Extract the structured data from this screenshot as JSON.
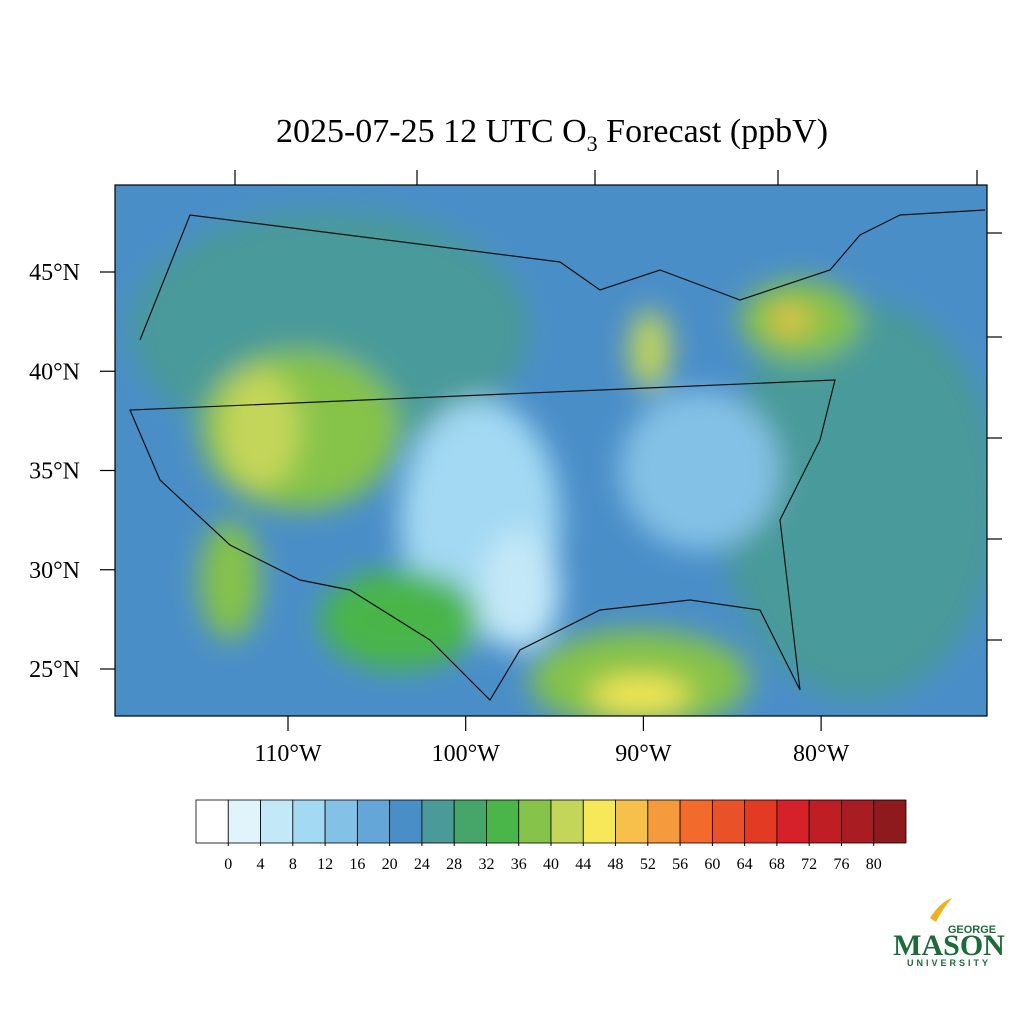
{
  "map": {
    "title_parts": [
      "2025-07-25 12 UTC O",
      "3",
      " Forecast (ppbV)"
    ],
    "lat_ticks": [
      {
        "value": 45,
        "label": "45°N"
      },
      {
        "value": 40,
        "label": "40°N"
      },
      {
        "value": 35,
        "label": "35°N"
      },
      {
        "value": 30,
        "label": "30°N"
      },
      {
        "value": 25,
        "label": "25°N"
      }
    ],
    "lon_ticks": [
      {
        "value": -110,
        "label": "110°W"
      },
      {
        "value": -100,
        "label": "100°W"
      },
      {
        "value": -90,
        "label": "90°W"
      },
      {
        "value": -80,
        "label": "80°W"
      }
    ],
    "colorbar": {
      "ticks": [
        0,
        4,
        8,
        12,
        16,
        20,
        24,
        28,
        32,
        36,
        40,
        44,
        48,
        52,
        56,
        60,
        64,
        68,
        72,
        76,
        80
      ],
      "colors": [
        "#ffffff",
        "#e1f3fb",
        "#c3e8f8",
        "#a3d9f3",
        "#84c1e6",
        "#65a6d9",
        "#4a8ec8",
        "#4a9a9a",
        "#46a66a",
        "#4ab548",
        "#86c34a",
        "#c4d65a",
        "#f6e858",
        "#f7c04a",
        "#f69a3e",
        "#f36b2c",
        "#e95128",
        "#e33a24",
        "#d6202a",
        "#bf1e24",
        "#a91d22",
        "#8e1a1d"
      ]
    },
    "logo": {
      "top": "GEORGE",
      "main": "MASON",
      "bottom": "UNIVERSITY"
    }
  }
}
